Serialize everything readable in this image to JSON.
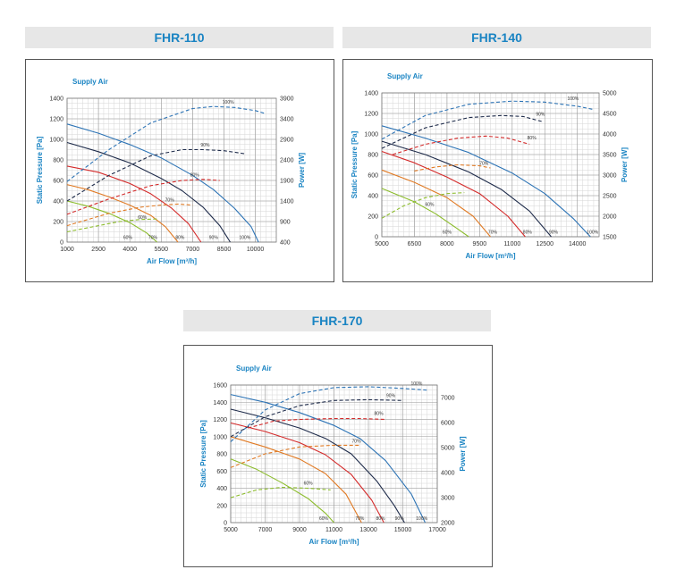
{
  "charts": [
    {
      "key": "c110",
      "title": "FHR-110",
      "chart_data": {
        "type": "line",
        "legend_text": "Supply Air",
        "xlabel": "Air Flow [m³/h]",
        "ylabel": "Static Pressure [Pa]",
        "y2label": "Power [W]",
        "xlim": [
          1000,
          11000
        ],
        "ylim": [
          0,
          1400
        ],
        "y2lim": [
          400,
          3900
        ],
        "xticks": [
          1000,
          2500,
          4000,
          5500,
          7000,
          8500,
          10000
        ],
        "yticks": [
          0,
          200,
          400,
          600,
          800,
          1000,
          1200,
          1400
        ],
        "y2ticks": [
          400,
          900,
          1400,
          1900,
          2400,
          2900,
          3400,
          3900
        ],
        "series": [
          {
            "color": "#2c73b5",
            "dashed": false,
            "label": "100%",
            "x": [
              1000,
              2500,
              4000,
              5500,
              7000,
              8000,
              9000,
              9800,
              10150
            ],
            "y": [
              1150,
              1060,
              950,
              820,
              650,
              510,
              330,
              150,
              0
            ]
          },
          {
            "color": "#1e2b4a",
            "dashed": false,
            "label": "90%",
            "x": [
              1000,
              2500,
              4000,
              5500,
              6500,
              7500,
              8300,
              8800
            ],
            "y": [
              970,
              880,
              770,
              620,
              500,
              340,
              160,
              0
            ]
          },
          {
            "color": "#d42a2a",
            "dashed": false,
            "label": "80%",
            "x": [
              1000,
              2500,
              4000,
              5000,
              6000,
              6800,
              7400
            ],
            "y": [
              740,
              680,
              570,
              470,
              330,
              180,
              0
            ]
          },
          {
            "color": "#e07a24",
            "dashed": false,
            "label": "70%",
            "x": [
              1000,
              2000,
              3000,
              4000,
              5000,
              5700,
              6300
            ],
            "y": [
              560,
              510,
              440,
              360,
              260,
              150,
              0
            ]
          },
          {
            "color": "#8cbc2c",
            "dashed": false,
            "label": "60%",
            "x": [
              1000,
              2000,
              3000,
              4000,
              4800,
              5300
            ],
            "y": [
              400,
              350,
              280,
              190,
              90,
              0
            ]
          },
          {
            "color": "#2c73b5",
            "dashed": true,
            "label": "100%",
            "x": [
              1000,
              3000,
              5000,
              7000,
              8000,
              9000,
              10000,
              10500
            ],
            "y": [
              590,
              900,
              1160,
              1300,
              1320,
              1310,
              1280,
              1250
            ]
          },
          {
            "color": "#1e2b4a",
            "dashed": true,
            "label": "90%",
            "x": [
              1000,
              3000,
              5000,
              6500,
              7500,
              8500,
              9500
            ],
            "y": [
              400,
              650,
              840,
              900,
              900,
              890,
              860
            ]
          },
          {
            "color": "#d42a2a",
            "dashed": true,
            "label": "80%",
            "x": [
              1000,
              3000,
              5000,
              6500,
              7500,
              8300
            ],
            "y": [
              270,
              420,
              550,
              600,
              610,
              600
            ]
          },
          {
            "color": "#e07a24",
            "dashed": true,
            "label": "70%",
            "x": [
              1000,
              3000,
              4500,
              5500,
              6300,
              7000
            ],
            "y": [
              160,
              280,
              340,
              360,
              370,
              360
            ]
          },
          {
            "color": "#8cbc2c",
            "dashed": true,
            "label": "60%",
            "x": [
              1000,
              2500,
              3500,
              4500,
              5300
            ],
            "y": [
              100,
              160,
              200,
              220,
              225
            ]
          }
        ],
        "pct_labels": [
          {
            "text": "100%",
            "x": 8700,
            "y": 1350
          },
          {
            "text": "90%",
            "x": 7600,
            "y": 930
          },
          {
            "text": "80%",
            "x": 7100,
            "y": 640
          },
          {
            "text": "70%",
            "x": 5900,
            "y": 395
          },
          {
            "text": "60%",
            "x": 4600,
            "y": 225
          },
          {
            "text": "100%",
            "x": 9500,
            "y": 30
          },
          {
            "text": "90%",
            "x": 8000,
            "y": 30
          },
          {
            "text": "80%",
            "x": 6400,
            "y": 30
          },
          {
            "text": "70%",
            "x": 5100,
            "y": 30
          },
          {
            "text": "60%",
            "x": 3900,
            "y": 30
          }
        ]
      }
    },
    {
      "key": "c140",
      "title": "FHR-140",
      "chart_data": {
        "type": "line",
        "legend_text": "Supply Air",
        "xlabel": "Air Flow [m³/h]",
        "ylabel": "Static Pressure [Pa]",
        "y2label": "Power [W]",
        "xlim": [
          5000,
          15000
        ],
        "ylim": [
          0,
          1400
        ],
        "y2lim": [
          1500,
          5000
        ],
        "xticks": [
          5000,
          6500,
          8000,
          9500,
          11000,
          12500,
          14000
        ],
        "yticks": [
          0,
          200,
          400,
          600,
          800,
          1000,
          1200,
          1400
        ],
        "y2ticks": [
          1500,
          2000,
          2500,
          3000,
          3500,
          4000,
          4500,
          5000
        ],
        "series": [
          {
            "color": "#2c73b5",
            "dashed": false,
            "label": "100%",
            "x": [
              5000,
              7000,
              9000,
              11000,
              12500,
              13800,
              14600
            ],
            "y": [
              1080,
              960,
              820,
              620,
              420,
              180,
              0
            ]
          },
          {
            "color": "#1e2b4a",
            "dashed": false,
            "label": "90%",
            "x": [
              5000,
              7000,
              9000,
              10500,
              11800,
              12800
            ],
            "y": [
              930,
              800,
              630,
              460,
              250,
              0
            ]
          },
          {
            "color": "#d42a2a",
            "dashed": false,
            "label": "80%",
            "x": [
              5000,
              6500,
              8000,
              9500,
              10800,
              11600
            ],
            "y": [
              830,
              720,
              580,
              420,
              200,
              0
            ]
          },
          {
            "color": "#e07a24",
            "dashed": false,
            "label": "70%",
            "x": [
              5000,
              6500,
              8000,
              9200,
              10000
            ],
            "y": [
              650,
              530,
              380,
              200,
              0
            ]
          },
          {
            "color": "#8cbc2c",
            "dashed": false,
            "label": "60%",
            "x": [
              5000,
              6500,
              7500,
              8400,
              9000
            ],
            "y": [
              470,
              340,
              220,
              90,
              0
            ]
          },
          {
            "color": "#2c73b5",
            "dashed": true,
            "label": "100%",
            "x": [
              5000,
              7000,
              9000,
              11000,
              12500,
              14000,
              14700
            ],
            "y": [
              950,
              1180,
              1290,
              1320,
              1310,
              1270,
              1240
            ]
          },
          {
            "color": "#1e2b4a",
            "dashed": true,
            "label": "90%",
            "x": [
              5000,
              7000,
              9000,
              10500,
              11500,
              12400
            ],
            "y": [
              860,
              1060,
              1160,
              1180,
              1170,
              1120
            ]
          },
          {
            "color": "#d42a2a",
            "dashed": true,
            "label": "80%",
            "x": [
              5500,
              7000,
              8500,
              9800,
              10800,
              11800
            ],
            "y": [
              800,
              900,
              960,
              980,
              960,
              900
            ]
          },
          {
            "color": "#e07a24",
            "dashed": true,
            "label": "70%",
            "x": [
              6500,
              7500,
              8500,
              9500,
              10000
            ],
            "y": [
              640,
              680,
              700,
              690,
              670
            ]
          },
          {
            "color": "#8cbc2c",
            "dashed": true,
            "label": "60%",
            "x": [
              5000,
              6000,
              7000,
              8000,
              8800
            ],
            "y": [
              180,
              300,
              380,
              420,
              430
            ]
          }
        ],
        "pct_labels": [
          {
            "text": "100%",
            "x": 13800,
            "y": 1330
          },
          {
            "text": "90%",
            "x": 12300,
            "y": 1180
          },
          {
            "text": "80%",
            "x": 11900,
            "y": 950
          },
          {
            "text": "70%",
            "x": 9700,
            "y": 700
          },
          {
            "text": "60%",
            "x": 7200,
            "y": 300
          },
          {
            "text": "100%",
            "x": 14700,
            "y": 30
          },
          {
            "text": "90%",
            "x": 12900,
            "y": 30
          },
          {
            "text": "80%",
            "x": 11700,
            "y": 30
          },
          {
            "text": "70%",
            "x": 10100,
            "y": 30
          },
          {
            "text": "60%",
            "x": 8000,
            "y": 30
          }
        ]
      }
    },
    {
      "key": "c170",
      "title": "FHR-170",
      "chart_data": {
        "type": "line",
        "legend_text": "Supply Air",
        "xlabel": "Air Flow [m³/h]",
        "ylabel": "Static Pressure [Pa]",
        "y2label": "Power [W]",
        "xlim": [
          5000,
          17000
        ],
        "ylim": [
          0,
          1600
        ],
        "y2lim": [
          2000,
          7500
        ],
        "xticks": [
          5000,
          7000,
          9000,
          11000,
          13000,
          15000,
          17000
        ],
        "yticks": [
          0,
          200,
          400,
          600,
          800,
          1000,
          1200,
          1400,
          1600
        ],
        "y2ticks": [
          2000,
          3000,
          4000,
          5000,
          6000,
          7000
        ],
        "series": [
          {
            "color": "#2c73b5",
            "dashed": false,
            "label": "100%",
            "x": [
              5000,
              7000,
              9000,
              11000,
              12500,
              14000,
              15500,
              16300
            ],
            "y": [
              1490,
              1400,
              1280,
              1130,
              980,
              720,
              330,
              0
            ]
          },
          {
            "color": "#1e2b4a",
            "dashed": false,
            "label": "90%",
            "x": [
              5000,
              7000,
              9000,
              10500,
              12000,
              13500,
              14500,
              15100
            ],
            "y": [
              1320,
              1220,
              1100,
              980,
              800,
              480,
              200,
              0
            ]
          },
          {
            "color": "#d42a2a",
            "dashed": false,
            "label": "80%",
            "x": [
              5000,
              7000,
              9000,
              10500,
              12000,
              13200,
              13900
            ],
            "y": [
              1160,
              1060,
              930,
              790,
              560,
              260,
              0
            ]
          },
          {
            "color": "#e07a24",
            "dashed": false,
            "label": "70%",
            "x": [
              5000,
              7000,
              9000,
              10500,
              11700,
              12600
            ],
            "y": [
              1000,
              880,
              740,
              570,
              330,
              0
            ]
          },
          {
            "color": "#8cbc2c",
            "dashed": false,
            "label": "60%",
            "x": [
              5000,
              6500,
              8000,
              9500,
              10500,
              11000
            ],
            "y": [
              740,
              620,
              460,
              280,
              110,
              0
            ]
          },
          {
            "color": "#2c73b5",
            "dashed": true,
            "label": "100%",
            "x": [
              5000,
              7000,
              9000,
              11000,
              13000,
              15000,
              16500
            ],
            "y": [
              940,
              1310,
              1500,
              1570,
              1580,
              1560,
              1540
            ]
          },
          {
            "color": "#1e2b4a",
            "dashed": true,
            "label": "90%",
            "x": [
              5000,
              7000,
              9000,
              11000,
              13000,
              15000
            ],
            "y": [
              1000,
              1230,
              1360,
              1420,
              1430,
              1420
            ]
          },
          {
            "color": "#d42a2a",
            "dashed": true,
            "label": "80%",
            "x": [
              6000,
              7500,
              9000,
              11000,
              12500,
              14000
            ],
            "y": [
              1100,
              1180,
              1200,
              1210,
              1210,
              1200
            ]
          },
          {
            "color": "#e07a24",
            "dashed": true,
            "label": "70%",
            "x": [
              5000,
              7000,
              9000,
              11000,
              12500
            ],
            "y": [
              640,
              800,
              880,
              900,
              900
            ]
          },
          {
            "color": "#8cbc2c",
            "dashed": true,
            "label": "60%",
            "x": [
              5000,
              6500,
              8000,
              9500,
              10800
            ],
            "y": [
              290,
              380,
              410,
              400,
              380
            ]
          }
        ],
        "pct_labels": [
          {
            "text": "100%",
            "x": 15800,
            "y": 1600
          },
          {
            "text": "90%",
            "x": 14300,
            "y": 1460
          },
          {
            "text": "80%",
            "x": 13600,
            "y": 1250
          },
          {
            "text": "70%",
            "x": 12300,
            "y": 930
          },
          {
            "text": "60%",
            "x": 9500,
            "y": 440
          },
          {
            "text": "100%",
            "x": 16100,
            "y": 30
          },
          {
            "text": "90%",
            "x": 14800,
            "y": 30
          },
          {
            "text": "80%",
            "x": 13700,
            "y": 30
          },
          {
            "text": "70%",
            "x": 12500,
            "y": 30
          },
          {
            "text": "60%",
            "x": 10400,
            "y": 30
          }
        ]
      }
    }
  ]
}
